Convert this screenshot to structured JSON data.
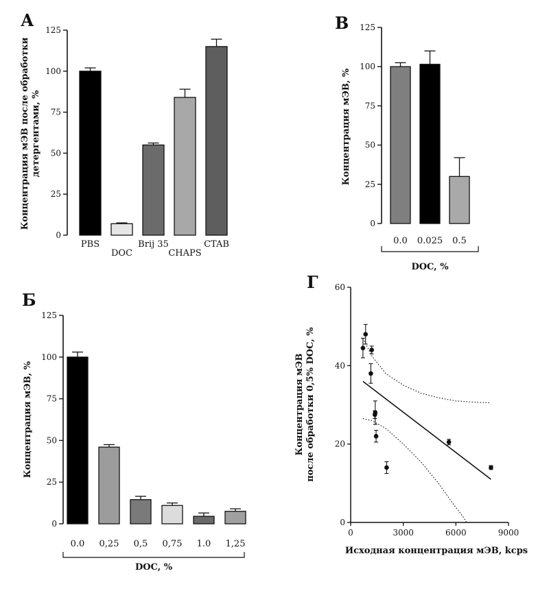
{
  "figure": {
    "panel_letters": [
      "А",
      "В",
      "Б",
      "Г"
    ]
  },
  "chart_data": [
    {
      "id": "A",
      "type": "bar",
      "panel_label": "А",
      "categories": [
        "PBS",
        "DOC",
        "Brij 35",
        "CHAPS",
        "CTAB"
      ],
      "values": [
        100,
        7,
        55,
        84,
        115
      ],
      "errors": [
        2,
        0.5,
        1.2,
        5,
        4.5
      ],
      "colors": [
        "#000000",
        "#e6e6e6",
        "#6b6b6b",
        "#a8a8a8",
        "#5e5e5e"
      ],
      "ylabel_lines": [
        "Концентрация мЭВ после обработки",
        "детергентами, %"
      ],
      "xlabel": "",
      "ylim": [
        0,
        125
      ],
      "yticks": [
        "0",
        "25",
        "50",
        "75",
        "100",
        "125"
      ]
    },
    {
      "id": "B",
      "type": "bar",
      "panel_label": "В",
      "categories": [
        "0.0",
        "0.025",
        "0.5"
      ],
      "values": [
        100,
        101.5,
        30
      ],
      "errors": [
        2.5,
        8.5,
        12
      ],
      "colors": [
        "#7f7f7f",
        "#000000",
        "#a9a9a9"
      ],
      "ylabel_lines": [
        "Концентрация мЭВ, %"
      ],
      "xlabel": "DOC, %",
      "ylim": [
        0,
        125
      ],
      "yticks": [
        "0",
        "25",
        "50",
        "75",
        "100",
        "125"
      ]
    },
    {
      "id": "C",
      "type": "bar",
      "panel_label": "Б",
      "categories": [
        "0.0",
        "0,25",
        "0,5",
        "0,75",
        "1.0",
        "1,25"
      ],
      "values": [
        100,
        46,
        14.5,
        11,
        4.5,
        7.5
      ],
      "errors": [
        3,
        1.5,
        2,
        1.5,
        2,
        1.5
      ],
      "colors": [
        "#000000",
        "#9c9c9c",
        "#7a7a7a",
        "#dcdcdc",
        "#6a6a6a",
        "#a0a0a0"
      ],
      "ylabel_lines": [
        "Концентрация мЭВ, %"
      ],
      "xlabel": "DOC, %",
      "ylim": [
        0,
        125
      ],
      "yticks": [
        "0",
        "25",
        "50",
        "75",
        "100",
        "125"
      ]
    },
    {
      "id": "D",
      "type": "scatter",
      "panel_label": "Г",
      "points": [
        {
          "x": 700,
          "y": 44.5,
          "err": 2.5
        },
        {
          "x": 850,
          "y": 48,
          "err": 2.5
        },
        {
          "x": 1200,
          "y": 44,
          "err": 1
        },
        {
          "x": 1150,
          "y": 38,
          "err": 2.5
        },
        {
          "x": 1400,
          "y": 28,
          "err": 3
        },
        {
          "x": 1380,
          "y": 27.5,
          "err": 1
        },
        {
          "x": 1450,
          "y": 22,
          "err": 1.5
        },
        {
          "x": 2050,
          "y": 14,
          "err": 1.5
        },
        {
          "x": 5600,
          "y": 20.5,
          "err": 0.7
        },
        {
          "x": 8000,
          "y": 14,
          "err": 0.5
        }
      ],
      "regression": {
        "x": [
          700,
          8000
        ],
        "y": [
          36,
          11
        ]
      },
      "ci_upper": {
        "x": [
          700,
          1200,
          2000,
          3000,
          4000,
          5000,
          6000,
          7000,
          8000
        ],
        "y": [
          47,
          42.5,
          38,
          35,
          33,
          31.8,
          31,
          30.7,
          30.5
        ]
      },
      "ci_lower": {
        "x": [
          700,
          1200,
          2000,
          3000,
          4000,
          5000,
          5800,
          6400,
          6600
        ],
        "y": [
          26.5,
          26,
          24,
          20,
          15.5,
          10,
          5,
          1.5,
          0
        ]
      },
      "xlabel": "Исходная концентрация мЭВ, kcps",
      "ylabel_lines": [
        "Концентрация мЭВ",
        "после обработки 0,5% DOC, %"
      ],
      "xlim": [
        0,
        9000
      ],
      "ylim": [
        0,
        60
      ],
      "xticks": [
        "0",
        "3000",
        "6000",
        "9000"
      ],
      "yticks": [
        "0",
        "20",
        "40",
        "60"
      ]
    }
  ]
}
